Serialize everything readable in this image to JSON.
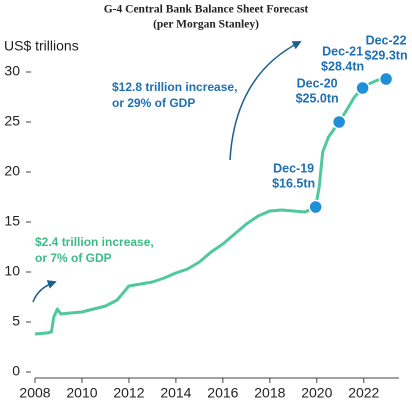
{
  "chart_data": {
    "type": "line",
    "title": "G-4 Central Bank Balance Sheet Forecast",
    "subtitle": "(per Morgan Stanley)",
    "y_label": "US$ trillions",
    "xlim": [
      2008,
      2023.5
    ],
    "xticks": [
      2008,
      2010,
      2012,
      2014,
      2016,
      2018,
      2020,
      2022
    ],
    "ylim": [
      0,
      30
    ],
    "yticks": [
      0,
      5,
      10,
      15,
      20,
      25,
      30
    ],
    "grid": false,
    "series": [
      {
        "name": "G-4 balance sheet",
        "color": "#4fc99b",
        "x": [
          2008.0,
          2008.5,
          2008.7,
          2008.8,
          2008.95,
          2009.1,
          2009.5,
          2010.0,
          2010.5,
          2011.0,
          2011.5,
          2012.0,
          2012.5,
          2013.0,
          2013.5,
          2014.0,
          2014.5,
          2015.0,
          2015.5,
          2016.0,
          2016.5,
          2017.0,
          2017.5,
          2018.0,
          2018.5,
          2019.0,
          2019.5,
          2019.95,
          2020.1,
          2020.25,
          2020.5,
          2020.95,
          2021.3,
          2021.6,
          2021.95,
          2022.3,
          2022.6,
          2022.95
        ],
        "values": [
          3.8,
          3.9,
          4.0,
          5.5,
          6.3,
          5.8,
          5.9,
          6.0,
          6.3,
          6.6,
          7.2,
          8.6,
          8.8,
          9.0,
          9.4,
          9.9,
          10.3,
          11.0,
          12.0,
          12.8,
          13.8,
          14.8,
          15.6,
          16.1,
          16.2,
          16.1,
          16.0,
          16.5,
          18.5,
          22.0,
          23.5,
          25.0,
          26.3,
          27.5,
          28.4,
          28.9,
          29.2,
          29.3
        ]
      }
    ],
    "highlights": {
      "color": "#1f8fd8",
      "x": [
        2019.95,
        2020.95,
        2021.95,
        2022.95
      ],
      "values": [
        16.5,
        25.0,
        28.4,
        29.3
      ],
      "labels": [
        "Dec-19",
        "Dec-20",
        "Dec-21",
        "Dec-22"
      ],
      "value_labels": [
        "$16.5tn",
        "$25.0tn",
        "$28.4tn",
        "$29.3tn"
      ]
    },
    "annotations": [
      {
        "lines": [
          "$12.8 trillion increase,",
          "or 29% of GDP"
        ],
        "color": "#1f6fb2"
      },
      {
        "lines": [
          "$2.4 trillion increase,",
          "or 7% of GDP"
        ],
        "color": "#3dbb86"
      }
    ]
  }
}
